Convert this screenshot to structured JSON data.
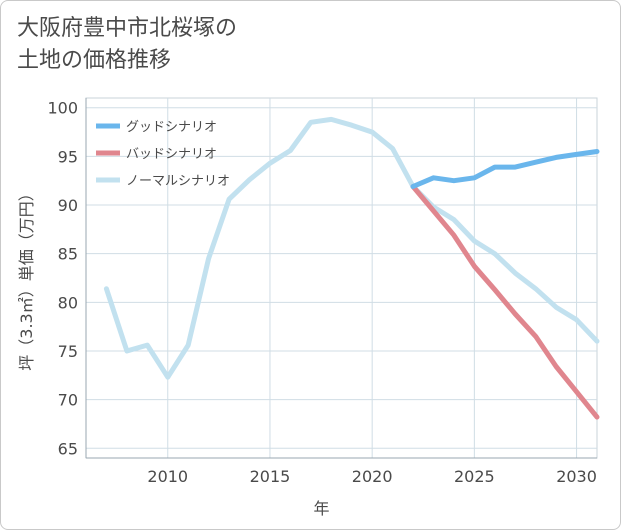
{
  "title_line1": "大阪府豊中市北桜塚の",
  "title_line2": "土地の価格推移",
  "chart_data": {
    "type": "line",
    "title": "大阪府豊中市北桜塚の土地の価格推移",
    "xlabel": "年",
    "ylabel": "坪（3.3㎡）単価（万円）",
    "xlim": [
      2006,
      2031
    ],
    "ylim": [
      64,
      101
    ],
    "xticks": [
      2010,
      2015,
      2020,
      2025,
      2030
    ],
    "yticks": [
      65,
      70,
      75,
      80,
      85,
      90,
      95,
      100
    ],
    "grid": true,
    "legend_position": "top-left",
    "series": [
      {
        "name": "グッドシナリオ",
        "color": "#6ab6ec",
        "x": [
          2022,
          2023,
          2024,
          2025,
          2026,
          2027,
          2028,
          2029,
          2030,
          2031
        ],
        "y": [
          91.9,
          92.8,
          92.5,
          92.8,
          93.9,
          93.9,
          94.4,
          94.9,
          95.2,
          95.5
        ]
      },
      {
        "name": "バッドシナリオ",
        "color": "#e0868e",
        "x": [
          2022,
          2023,
          2024,
          2025,
          2026,
          2027,
          2028,
          2029,
          2030,
          2031
        ],
        "y": [
          91.9,
          89.4,
          86.9,
          83.7,
          81.3,
          78.8,
          76.5,
          73.4,
          70.8,
          68.2
        ]
      },
      {
        "name": "ノーマルシナリオ",
        "color": "#c2e1ef",
        "x": [
          2007,
          2008,
          2009,
          2010,
          2011,
          2012,
          2013,
          2014,
          2015,
          2016,
          2017,
          2018,
          2019,
          2020,
          2021,
          2022,
          2023,
          2024,
          2025,
          2026,
          2027,
          2028,
          2029,
          2030,
          2031
        ],
        "y": [
          81.4,
          75.0,
          75.6,
          72.3,
          75.6,
          84.5,
          90.6,
          92.6,
          94.3,
          95.6,
          98.5,
          98.8,
          98.2,
          97.5,
          95.8,
          91.9,
          89.8,
          88.5,
          86.3,
          85.0,
          83.0,
          81.4,
          79.5,
          78.2,
          76.0
        ]
      }
    ]
  }
}
